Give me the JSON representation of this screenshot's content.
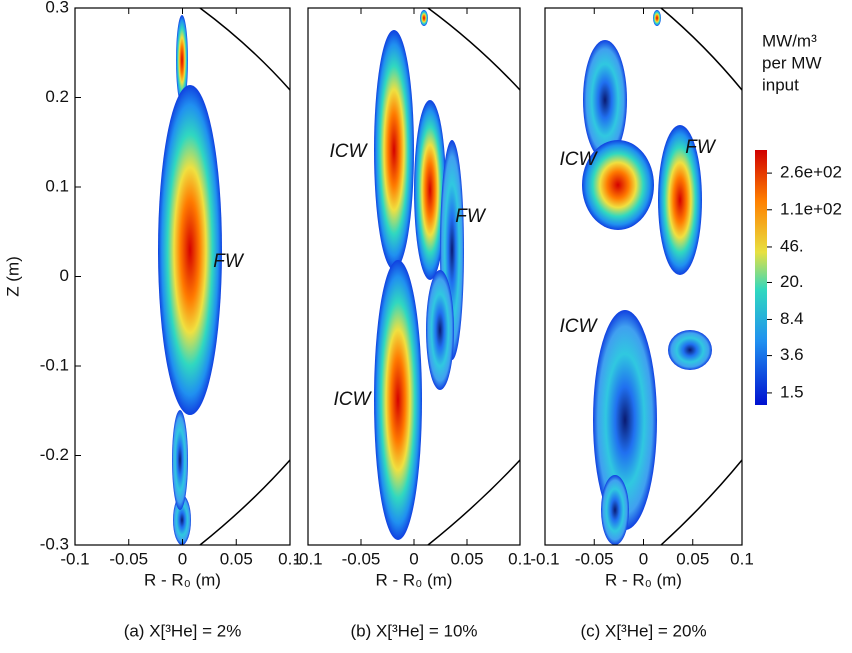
{
  "chart_data": [
    {
      "type": "contour",
      "xlabel": "R - R₀ (m)",
      "ylabel": "Z (m)",
      "caption": "(a) X[³He] = 2%",
      "xlim": [
        -0.1,
        0.1
      ],
      "ylim": [
        -0.3,
        0.3
      ],
      "xticks": [
        -0.1,
        -0.05,
        0,
        0.05,
        0.1
      ],
      "yticks": [
        0.3,
        0.2,
        0.1,
        0,
        -0.1,
        -0.2,
        -0.3
      ],
      "annotations": [
        "FW"
      ]
    },
    {
      "type": "contour",
      "xlabel": "R - R₀ (m)",
      "caption": "(b) X[³He] = 10%",
      "xlim": [
        -0.1,
        0.1
      ],
      "ylim": [
        -0.3,
        0.3
      ],
      "xticks": [
        -0.1,
        -0.05,
        0,
        0.05,
        0.1
      ],
      "annotations": [
        "ICW",
        "FW",
        "ICW"
      ]
    },
    {
      "type": "contour",
      "xlabel": "R - R₀ (m)",
      "caption": "(c) X[³He] = 20%",
      "xlim": [
        -0.1,
        0.1
      ],
      "ylim": [
        -0.3,
        0.3
      ],
      "xticks": [
        -0.1,
        -0.05,
        0,
        0.05,
        0.1
      ],
      "annotations": [
        "ICW",
        "FW",
        "ICW"
      ],
      "colorbar": {
        "title": [
          "MW/m³",
          "per MW",
          "input"
        ],
        "log": true,
        "lim": [
          1.13,
          447
        ],
        "ticks": [
          {
            "value": 260,
            "label": "2.6e+02"
          },
          {
            "value": 110,
            "label": "1.1e+02"
          },
          {
            "value": 46,
            "label": "46."
          },
          {
            "value": 20,
            "label": "20."
          },
          8.4,
          3.6,
          1.5
        ]
      }
    }
  ]
}
